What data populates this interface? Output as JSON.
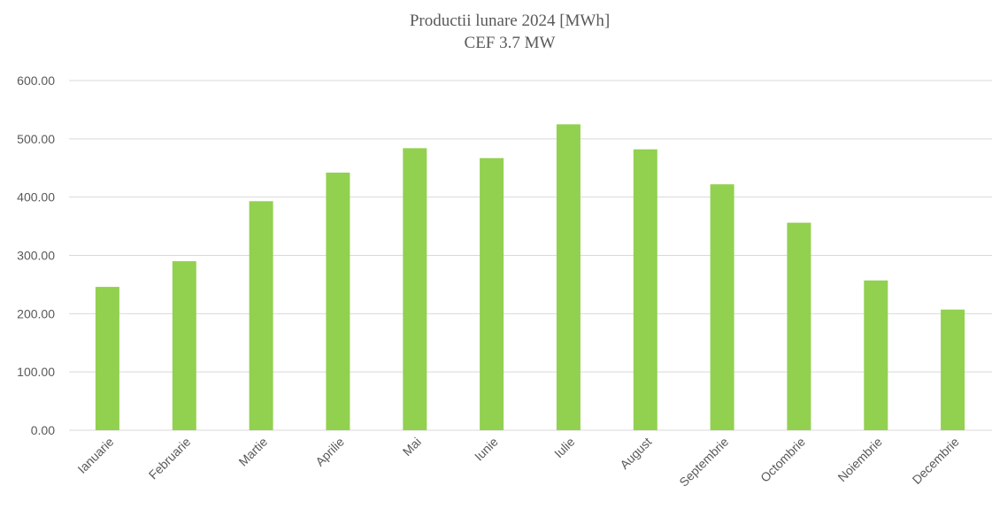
{
  "chart_data": {
    "type": "bar",
    "title": "Productii lunare 2024 [MWh]",
    "subtitle": "CEF 3.7 MW",
    "xlabel": "",
    "ylabel": "",
    "categories": [
      "Ianuarie",
      "Februarie",
      "Martie",
      "Aprilie",
      "Mai",
      "Iunie",
      "Iulie",
      "August",
      "Septembrie",
      "Octombrie",
      "Noiembrie",
      "Decembrie"
    ],
    "values": [
      246,
      290,
      393,
      442,
      484,
      467,
      525,
      482,
      422,
      356,
      257,
      207
    ],
    "ylim": [
      0,
      600
    ],
    "yticks": [
      "0.00",
      "100.00",
      "200.00",
      "300.00",
      "400.00",
      "500.00",
      "600.00"
    ],
    "grid": true,
    "legend": "none",
    "bar_color": "#92d050"
  }
}
